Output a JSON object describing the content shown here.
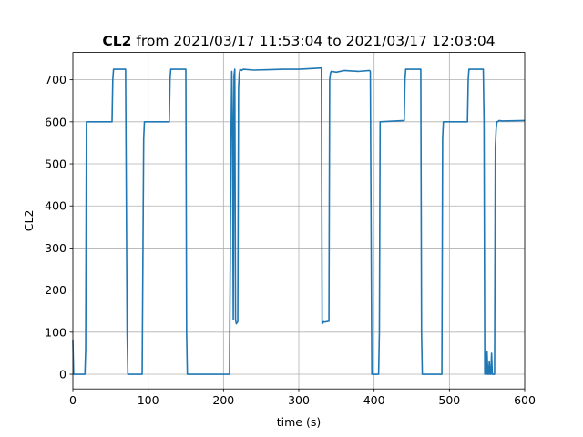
{
  "chart_data": {
    "type": "line",
    "title_bold": "CL2",
    "title_rest": " from 2021/03/17 11:53:04 to 2021/03/17 12:03:04",
    "xlabel": "time (s)",
    "ylabel": "CL2",
    "xlim": [
      0,
      600
    ],
    "ylim": [
      -35,
      765
    ],
    "xticks": [
      0,
      100,
      200,
      300,
      400,
      500,
      600
    ],
    "yticks": [
      0,
      100,
      200,
      300,
      400,
      500,
      600,
      700
    ],
    "grid": true,
    "color": "#1f77b4",
    "series": [
      {
        "x": [
          0,
          1,
          2,
          16,
          17,
          18,
          52,
          53,
          54,
          70,
          72,
          73,
          92,
          94,
          95,
          128,
          129,
          130,
          150,
          151,
          152,
          208,
          210,
          211,
          212,
          213,
          214,
          215,
          216,
          217,
          219,
          220,
          221,
          222,
          224,
          226,
          240,
          260,
          280,
          300,
          320,
          330,
          331,
          332,
          333,
          334,
          340,
          341,
          342,
          343,
          350,
          360,
          380,
          394,
          395,
          397,
          398,
          406,
          407,
          408,
          440,
          441,
          442,
          462,
          463,
          464,
          490,
          491,
          492,
          524,
          525,
          526,
          545,
          546,
          547,
          548,
          549,
          550,
          551,
          552,
          553,
          554,
          555,
          556,
          557,
          558,
          559,
          560,
          561,
          562,
          563,
          564,
          566,
          570,
          600
        ],
        "y": [
          80,
          0,
          0,
          0,
          60,
          600,
          600,
          700,
          725,
          725,
          100,
          0,
          0,
          560,
          600,
          600,
          700,
          725,
          725,
          100,
          0,
          0,
          550,
          720,
          600,
          130,
          710,
          725,
          130,
          120,
          125,
          680,
          715,
          725,
          722,
          725,
          723,
          724,
          725,
          725,
          727,
          728,
          120,
          122,
          125,
          124,
          126,
          700,
          715,
          720,
          718,
          722,
          720,
          722,
          720,
          0,
          0,
          0,
          100,
          600,
          603,
          700,
          725,
          725,
          100,
          0,
          0,
          560,
          600,
          600,
          700,
          725,
          725,
          600,
          0,
          50,
          0,
          55,
          0,
          0,
          30,
          0,
          0,
          50,
          0,
          0,
          0,
          0,
          540,
          580,
          600,
          600,
          603,
          602,
          603
        ]
      }
    ]
  }
}
